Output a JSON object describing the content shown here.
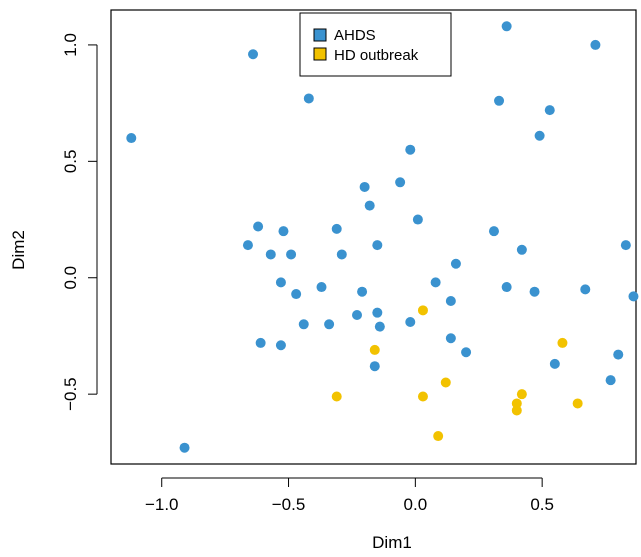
{
  "chart_data": {
    "type": "scatter",
    "xlabel": "Dim1",
    "ylabel": "Dim2",
    "xlim": [
      -1.2,
      0.87
    ],
    "ylim": [
      -0.8,
      1.15
    ],
    "x_ticks": [
      -1.0,
      -0.5,
      0.0,
      0.5
    ],
    "x_tick_labels": [
      "−1.0",
      "−0.5",
      "0.0",
      "0.5"
    ],
    "y_ticks": [
      -0.5,
      0.0,
      0.5,
      1.0
    ],
    "y_tick_labels": [
      "−0.5",
      "0.0",
      "0.5",
      "1.0"
    ],
    "grid": false,
    "legend_position": "top-center",
    "series": [
      {
        "name": "AHDS",
        "color": "#3a92cf",
        "points": [
          [
            -1.12,
            0.6
          ],
          [
            -0.64,
            0.96
          ],
          [
            -0.42,
            0.77
          ],
          [
            0.36,
            1.08
          ],
          [
            0.71,
            1.0
          ],
          [
            0.33,
            0.76
          ],
          [
            0.53,
            0.72
          ],
          [
            0.49,
            0.61
          ],
          [
            -0.02,
            0.55
          ],
          [
            -0.06,
            0.41
          ],
          [
            -0.2,
            0.39
          ],
          [
            -0.18,
            0.31
          ],
          [
            0.01,
            0.25
          ],
          [
            -0.62,
            0.22
          ],
          [
            -0.52,
            0.2
          ],
          [
            -0.31,
            0.21
          ],
          [
            0.31,
            0.2
          ],
          [
            -0.66,
            0.14
          ],
          [
            -0.15,
            0.14
          ],
          [
            0.83,
            0.14
          ],
          [
            -0.57,
            0.1
          ],
          [
            -0.49,
            0.1
          ],
          [
            -0.29,
            0.1
          ],
          [
            0.42,
            0.12
          ],
          [
            0.16,
            0.06
          ],
          [
            -0.53,
            -0.02
          ],
          [
            0.08,
            -0.02
          ],
          [
            -0.37,
            -0.04
          ],
          [
            0.36,
            -0.04
          ],
          [
            -0.47,
            -0.07
          ],
          [
            -0.21,
            -0.06
          ],
          [
            0.47,
            -0.06
          ],
          [
            0.67,
            -0.05
          ],
          [
            0.86,
            -0.08
          ],
          [
            0.14,
            -0.1
          ],
          [
            -0.15,
            -0.15
          ],
          [
            -0.23,
            -0.16
          ],
          [
            -0.44,
            -0.2
          ],
          [
            -0.34,
            -0.2
          ],
          [
            -0.02,
            -0.19
          ],
          [
            -0.14,
            -0.21
          ],
          [
            0.14,
            -0.26
          ],
          [
            -0.61,
            -0.28
          ],
          [
            -0.53,
            -0.29
          ],
          [
            0.2,
            -0.32
          ],
          [
            0.8,
            -0.33
          ],
          [
            0.55,
            -0.37
          ],
          [
            -0.16,
            -0.38
          ],
          [
            0.77,
            -0.44
          ],
          [
            -0.91,
            -0.73
          ]
        ]
      },
      {
        "name": "HD outbreak",
        "color": "#f2c200",
        "points": [
          [
            0.03,
            -0.14
          ],
          [
            -0.16,
            -0.31
          ],
          [
            0.58,
            -0.28
          ],
          [
            0.12,
            -0.45
          ],
          [
            -0.31,
            -0.51
          ],
          [
            0.03,
            -0.51
          ],
          [
            0.42,
            -0.5
          ],
          [
            0.4,
            -0.54
          ],
          [
            0.4,
            -0.57
          ],
          [
            0.64,
            -0.54
          ],
          [
            0.09,
            -0.68
          ]
        ]
      }
    ]
  }
}
